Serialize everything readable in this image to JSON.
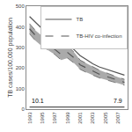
{
  "chart_data": {
    "type": "line",
    "x": [
      1993,
      1994,
      1995,
      1996,
      1997,
      1998,
      1999,
      2000,
      2001,
      2002,
      2003,
      2004,
      2005,
      2006,
      2007,
      2008
    ],
    "series": [
      {
        "name": "TB-HIV co-infection",
        "color": "#555555",
        "line_style": "dash",
        "values": [
          390,
          355,
          330,
          310,
          290,
          265,
          275,
          250,
          215,
          200,
          185,
          170,
          160,
          150,
          140,
          130
        ],
        "ci_upper": [
          415,
          380,
          355,
          335,
          315,
          295,
          305,
          278,
          238,
          222,
          205,
          190,
          178,
          165,
          155,
          145
        ],
        "ci_lower": [
          365,
          330,
          305,
          285,
          265,
          238,
          248,
          224,
          193,
          178,
          165,
          152,
          143,
          135,
          126,
          116
        ]
      },
      {
        "name": "TB",
        "color": "#555555",
        "line_style": "solid",
        "values": [
          450,
          420,
          390,
          370,
          350,
          320,
          310,
          290,
          260,
          240,
          220,
          205,
          195,
          185,
          175,
          165
        ]
      },
      {
        "color": "#555555",
        "line_style": "solid",
        "values": [
          10,
          10,
          10,
          10,
          10,
          10,
          10,
          10,
          10,
          10,
          10,
          10,
          10,
          10,
          10,
          10
        ]
      }
    ],
    "annotations": [
      {
        "text": "10.1",
        "x": 1993,
        "y": 18
      },
      {
        "text": "7.9",
        "x": 2008,
        "y": 18
      }
    ],
    "ylabel": "TB cases/100,000 population",
    "xlim": [
      1992.5,
      2008.5
    ],
    "xticks": [
      1993,
      1995,
      1997,
      1999,
      2001,
      2003,
      2005,
      2007
    ],
    "ylim": [
      0,
      500
    ],
    "yticks": [
      0,
      100,
      200,
      300,
      400,
      500
    ],
    "grid": false,
    "legend": "upper right"
  }
}
